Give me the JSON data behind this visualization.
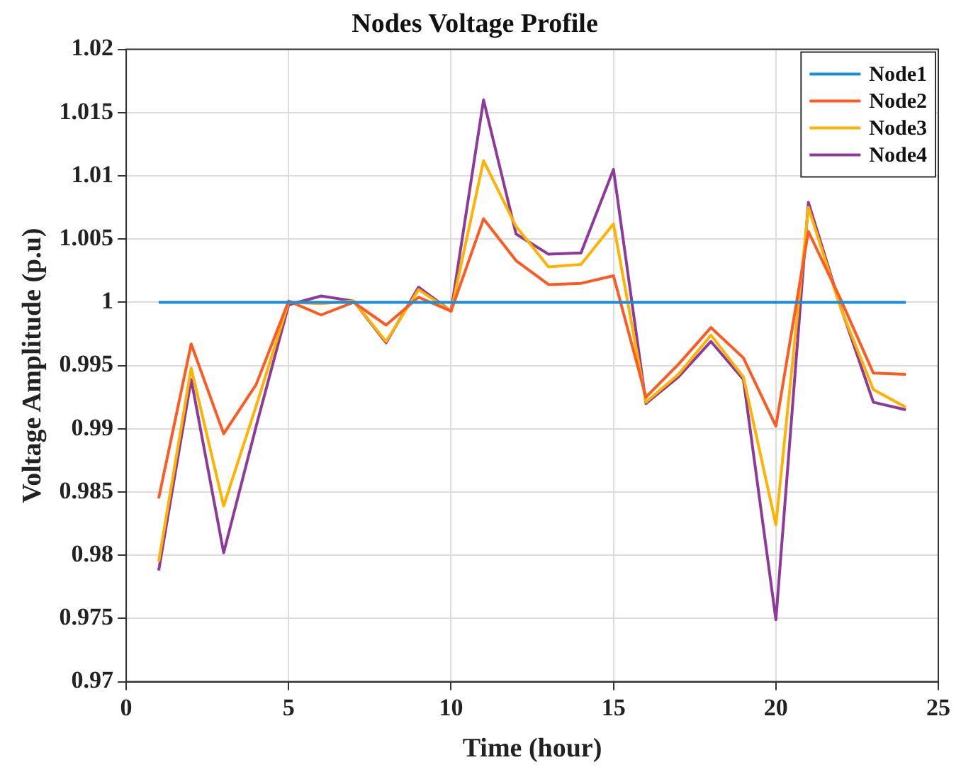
{
  "chart_data": {
    "type": "line",
    "title": "Nodes Voltage Profile",
    "xlabel": "Time (hour)",
    "ylabel": "Voltage Amplitude (p.u)",
    "x": [
      1,
      2,
      3,
      4,
      5,
      6,
      7,
      8,
      9,
      10,
      11,
      12,
      13,
      14,
      15,
      16,
      17,
      18,
      19,
      20,
      21,
      22,
      23,
      24
    ],
    "series": [
      {
        "name": "Node1",
        "color": "#1a8cd8",
        "values": [
          1,
          1,
          1,
          1,
          1,
          1,
          1,
          1,
          1,
          1,
          1,
          1,
          1,
          1,
          1,
          1,
          1,
          1,
          1,
          1,
          1,
          1,
          1,
          1
        ]
      },
      {
        "name": "Node2",
        "color": "#ff5a22",
        "values": [
          0.9845,
          0.9967,
          0.9896,
          0.9935,
          1.0001,
          0.999,
          1.0,
          0.9982,
          1.0004,
          0.9993,
          1.0066,
          1.0033,
          1.0014,
          1.0015,
          1.0021,
          0.9925,
          0.9951,
          0.998,
          0.9956,
          0.9902,
          1.0056,
          1.0002,
          0.9944,
          0.9943
        ]
      },
      {
        "name": "Node3",
        "color": "#ffb300",
        "values": [
          0.9795,
          0.9948,
          0.9839,
          0.9918,
          1.0,
          0.9999,
          1.0001,
          0.9969,
          1.001,
          0.9993,
          1.0112,
          1.006,
          1.0028,
          1.003,
          1.0062,
          0.9921,
          0.9943,
          0.9974,
          0.9941,
          0.9824,
          1.0075,
          0.9995,
          0.9931,
          0.9917
        ]
      },
      {
        "name": "Node4",
        "color": "#8e3a9a",
        "values": [
          0.9788,
          0.9939,
          0.9802,
          0.9902,
          0.9998,
          1.0005,
          1.0001,
          0.9968,
          1.0012,
          0.9993,
          1.016,
          1.0054,
          1.0038,
          1.0039,
          1.0105,
          0.992,
          0.9941,
          0.9969,
          0.9939,
          0.9749,
          1.0079,
          0.9996,
          0.9921,
          0.9915
        ]
      }
    ],
    "xlim": [
      0,
      25
    ],
    "xticks": [
      0,
      5,
      10,
      15,
      20,
      25
    ],
    "ylim": [
      0.97,
      1.02
    ],
    "yticks": [
      0.97,
      0.975,
      0.98,
      0.985,
      0.99,
      0.995,
      1,
      1.005,
      1.01,
      1.015,
      1.02
    ],
    "grid": true,
    "legend": "top right",
    "marker": "none",
    "line_style": "solid"
  }
}
